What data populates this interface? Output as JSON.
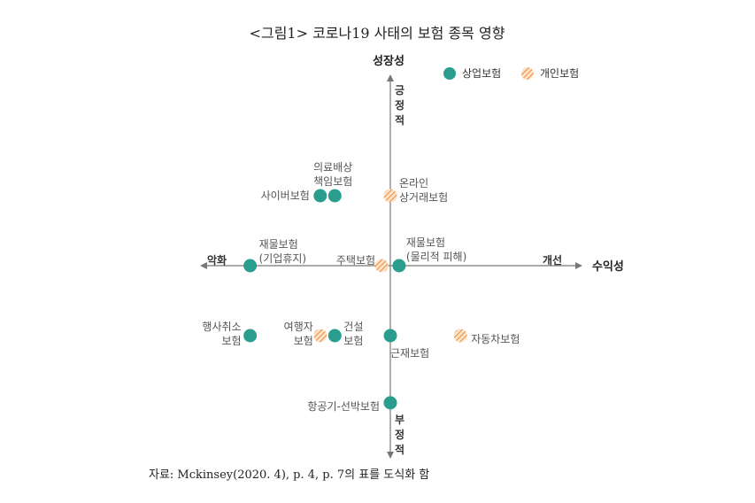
{
  "chart_data": {
    "type": "scatter",
    "title": "<그림1> 코로나19 사태의 보험 종목 영향",
    "x_axis": {
      "label": "수익성",
      "negative_label": "악화",
      "positive_label": "개선"
    },
    "y_axis": {
      "label": "성장성",
      "positive_label": "긍정적",
      "negative_label": "부정적"
    },
    "xlim": [
      -5,
      5
    ],
    "ylim": [
      -5,
      5
    ],
    "grid": false,
    "legend_position": "top-right",
    "colors": {
      "commercial": "#2a9d8f",
      "personal": "#f4a261",
      "axis": "#777777"
    },
    "series": [
      {
        "name": "상업보험",
        "points": [
          {
            "label": "사이버보험",
            "x": -2.4,
            "y": 2.5
          },
          {
            "label": "의료배상\n책임보험",
            "x": -1.9,
            "y": 2.5
          },
          {
            "label": "재물보험\n(물리적 피해)",
            "x": 0.3,
            "y": 0
          },
          {
            "label": "재물보험\n(기업휴지)",
            "x": -4.8,
            "y": 0
          },
          {
            "label": "행사취소\n보험",
            "x": -4.8,
            "y": -2.5
          },
          {
            "label": "건설\n보험",
            "x": -1.9,
            "y": -2.5
          },
          {
            "label": "근재보험",
            "x": 0,
            "y": -2.5
          },
          {
            "label": "항공기-선박보험",
            "x": 0,
            "y": -4.9
          }
        ]
      },
      {
        "name": "개인보험",
        "points": [
          {
            "label": "온라인\n상거래보험",
            "x": 0,
            "y": 2.5
          },
          {
            "label": "주택보험",
            "x": -0.3,
            "y": 0
          },
          {
            "label": "여행자\n보험",
            "x": -2.4,
            "y": -2.5
          },
          {
            "label": "자동차보험",
            "x": 2.4,
            "y": -2.5
          }
        ]
      }
    ],
    "source": "자료: Mckinsey(2020. 4), p. 4, p. 7의 표를 도식화 함"
  }
}
